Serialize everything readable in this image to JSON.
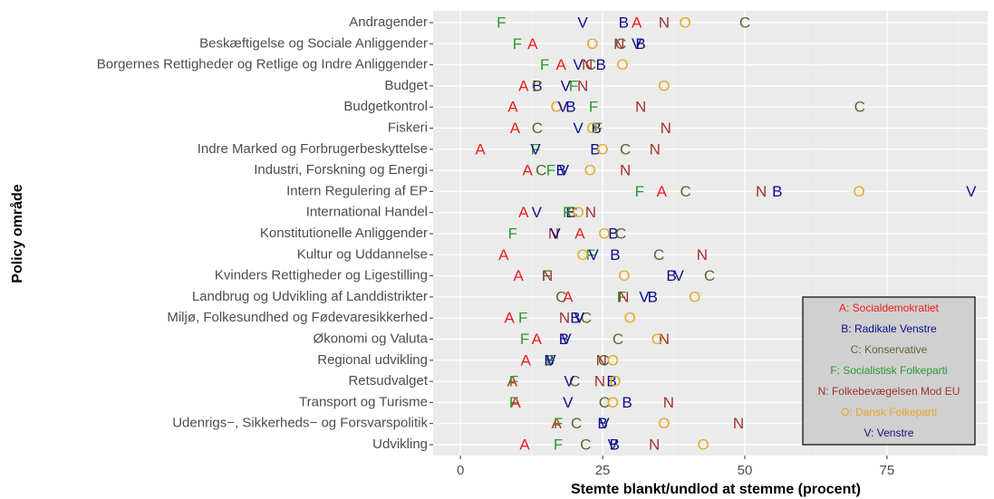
{
  "chart_data": {
    "type": "scatter",
    "x_label": "Stemte blankt/undlod at stemme (procent)",
    "y_label": "Policy område",
    "categories": [
      "Andragender",
      "Beskæftigelse og Sociale Anliggender",
      "Borgernes Rettigheder og Retlige og Indre Anliggender",
      "Budget",
      "Budgetkontrol",
      "Fiskeri",
      "Indre Marked og Forbrugerbeskyttelse",
      "Industri, Forskning og Energi",
      "Intern Regulering af EP",
      "International Handel",
      "Konstitutionelle Anliggender",
      "Kultur og Uddannelse",
      "Kvinders Rettigheder og Ligestilling",
      "Landbrug og Udvikling af Landdistrikter",
      "Miljø, Folkesundhed og Fødevaresikkerhed",
      "Økonomi og Valuta",
      "Regional udvikling",
      "Retsudvalget",
      "Transport og Turisme",
      "Udenrigs−, Sikkerheds− og Forsvarspolitik",
      "Udvikling"
    ],
    "xlim": [
      -4.8,
      92.7
    ],
    "xticks": [
      0,
      25,
      50,
      75
    ],
    "grid": true,
    "legend": "bottom-right",
    "series": [
      {
        "name": "A: Socialdemokratiet",
        "marker": "A",
        "color": "#ee1c1c",
        "values": [
          31.0,
          12.7,
          17.7,
          11.1,
          9.2,
          9.6,
          3.5,
          11.8,
          35.4,
          11.1,
          21.0,
          7.6,
          10.2,
          18.9,
          8.6,
          13.4,
          11.5,
          9.1,
          9.7,
          16.9,
          11.3
        ]
      },
      {
        "name": "B: Radikale Venstre",
        "marker": "B",
        "color": "#0b0b8c",
        "values": [
          28.7,
          31.7,
          24.7,
          13.5,
          19.4,
          23.9,
          23.7,
          17.7,
          55.7,
          19.4,
          26.9,
          27.2,
          37.1,
          33.8,
          20.2,
          18.2,
          15.6,
          26.6,
          29.3,
          25.0,
          27.1
        ]
      },
      {
        "name": "C: Konservative",
        "marker": "C",
        "color": "#556b2f",
        "values": [
          50.0,
          28.2,
          22.9,
          13.5,
          70.2,
          13.5,
          29.0,
          14.2,
          39.6,
          19.7,
          28.2,
          34.9,
          43.8,
          17.7,
          22.1,
          27.7,
          25.2,
          20.1,
          25.3,
          20.4,
          22.0
        ]
      },
      {
        "name": "F: Socialistisk Folkeparti",
        "marker": "F",
        "color": "#2a9a2a",
        "values": [
          7.2,
          10.0,
          14.8,
          19.9,
          23.4,
          24.2,
          13.2,
          15.9,
          31.5,
          18.8,
          9.2,
          22.9,
          15.1,
          28.3,
          11.0,
          11.3,
          15.9,
          9.4,
          9.4,
          17.2,
          17.2
        ]
      },
      {
        "name": "N: Folkebevægelsen Mod EU",
        "marker": "N",
        "color": "#a33232",
        "values": [
          35.8,
          27.9,
          22.3,
          21.5,
          31.7,
          36.1,
          34.2,
          29.0,
          52.9,
          22.9,
          16.4,
          42.5,
          15.3,
          28.7,
          18.3,
          35.8,
          24.8,
          24.5,
          36.6,
          48.9,
          34.1
        ]
      },
      {
        "name": "O: Dansk Folkeparti",
        "marker": "O",
        "color": "#e3a92a",
        "values": [
          39.5,
          23.2,
          28.5,
          35.8,
          16.9,
          23.2,
          25.0,
          22.8,
          70.1,
          20.7,
          25.3,
          21.5,
          28.8,
          41.2,
          29.8,
          34.6,
          26.8,
          27.2,
          26.8,
          35.8,
          42.7
        ]
      },
      {
        "name": "V: Venstre",
        "marker": "V",
        "color": "#10108a",
        "values": [
          21.5,
          31.0,
          20.7,
          18.5,
          18.0,
          20.7,
          13.2,
          18.2,
          89.8,
          13.4,
          16.7,
          23.4,
          38.4,
          32.3,
          20.9,
          18.6,
          15.9,
          19.1,
          18.9,
          25.3,
          26.8
        ]
      }
    ]
  }
}
